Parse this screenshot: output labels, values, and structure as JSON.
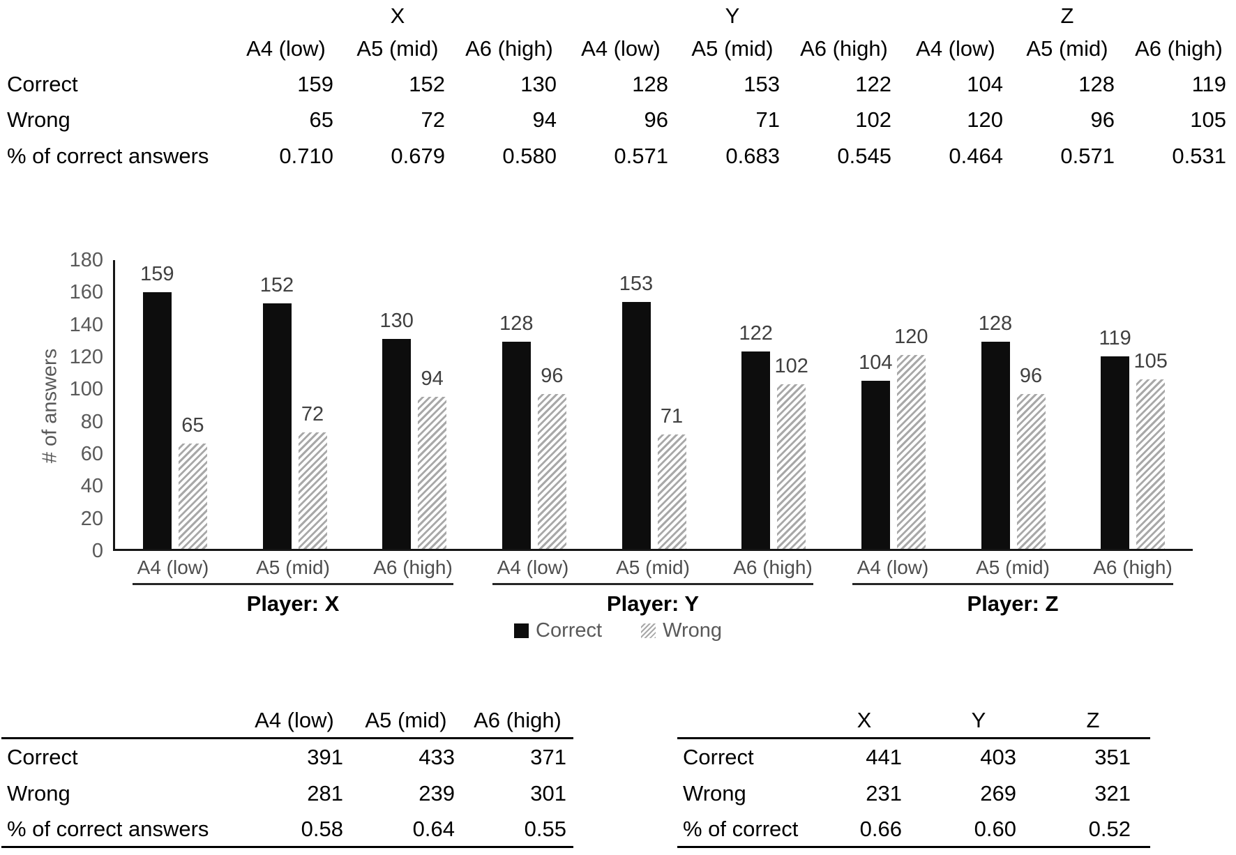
{
  "top_table": {
    "group_headers": [
      "X",
      "Y",
      "Z"
    ],
    "col_headers": [
      "A4 (low)",
      "A5 (mid)",
      "A6 (high)",
      "A4 (low)",
      "A5 (mid)",
      "A6 (high)",
      "A4 (low)",
      "A5 (mid)",
      "A6 (high)"
    ],
    "rows": [
      {
        "label": "Correct",
        "values": [
          "159",
          "152",
          "130",
          "128",
          "153",
          "122",
          "104",
          "128",
          "119"
        ]
      },
      {
        "label": "Wrong",
        "values": [
          "65",
          "72",
          "94",
          "96",
          "71",
          "102",
          "120",
          "96",
          "105"
        ]
      },
      {
        "label": "% of correct answers",
        "values": [
          "0.710",
          "0.679",
          "0.580",
          "0.571",
          "0.683",
          "0.545",
          "0.464",
          "0.571",
          "0.531"
        ]
      }
    ]
  },
  "chart_data": {
    "type": "bar",
    "title": "",
    "ylabel": "# of answers",
    "xlabel": "",
    "ylim": [
      0,
      180
    ],
    "ytick_step": 20,
    "grid": false,
    "legend_position": "bottom",
    "data_labels": true,
    "categories": [
      "A4 (low)",
      "A5 (mid)",
      "A6 (high)",
      "A4 (low)",
      "A5 (mid)",
      "A6 (high)",
      "A4 (low)",
      "A5 (mid)",
      "A6 (high)"
    ],
    "group_labels": [
      "Player: X",
      "Player: Y",
      "Player: Z"
    ],
    "series": [
      {
        "name": "Correct",
        "style": "solid-black",
        "values": [
          159,
          152,
          130,
          128,
          153,
          122,
          104,
          128,
          119
        ]
      },
      {
        "name": "Wrong",
        "style": "hatched-gray",
        "values": [
          65,
          72,
          94,
          96,
          71,
          102,
          120,
          96,
          105
        ]
      }
    ]
  },
  "bottom_left_table": {
    "col_headers": [
      "A4 (low)",
      "A5 (mid)",
      "A6 (high)"
    ],
    "rows": [
      {
        "label": "Correct",
        "values": [
          "391",
          "433",
          "371"
        ]
      },
      {
        "label": "Wrong",
        "values": [
          "281",
          "239",
          "301"
        ]
      },
      {
        "label": "% of correct answers",
        "values": [
          "0.58",
          "0.64",
          "0.55"
        ]
      }
    ]
  },
  "bottom_right_table": {
    "col_headers": [
      "X",
      "Y",
      "Z"
    ],
    "rows": [
      {
        "label": "Correct",
        "values": [
          "441",
          "403",
          "351"
        ]
      },
      {
        "label": "Wrong",
        "values": [
          "231",
          "269",
          "321"
        ]
      },
      {
        "label": "% of correct",
        "values": [
          "0.66",
          "0.60",
          "0.52"
        ]
      }
    ]
  },
  "colors": {
    "bar_correct": "#0d0d0d",
    "hatch_stripe": "#a8a8a8",
    "axis_text": "#595959",
    "category_text": "#4d4d4d",
    "data_label_text": "#404040",
    "table_text": "#000000",
    "axis_line": "#161616",
    "background": "#ffffff"
  }
}
